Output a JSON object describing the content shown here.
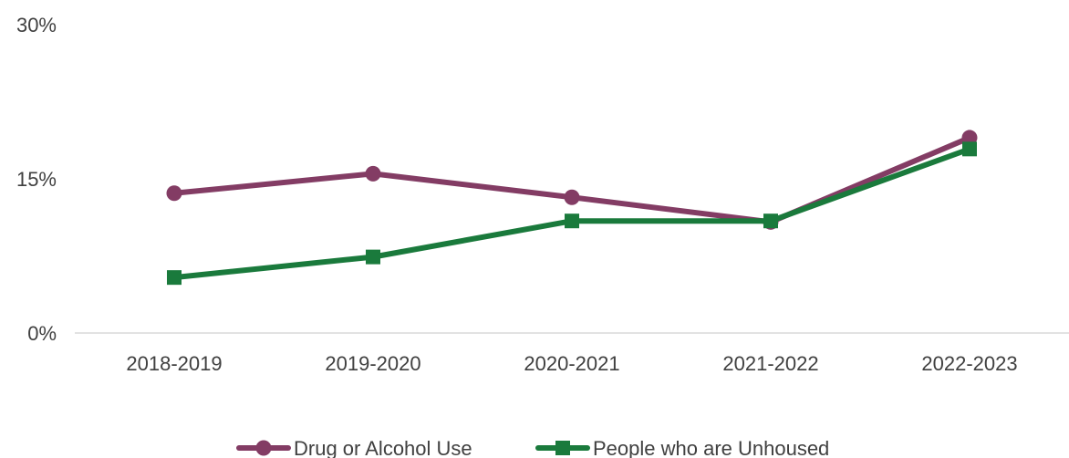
{
  "chart_data": {
    "type": "line",
    "categories": [
      "2018-2019",
      "2019-2020",
      "2020-2021",
      "2021-2022",
      "2022-2023"
    ],
    "y_ticks": [
      {
        "value": 0,
        "label": "0%"
      },
      {
        "value": 15,
        "label": "15%"
      },
      {
        "value": 30,
        "label": "30%"
      }
    ],
    "ylim": [
      0,
      30
    ],
    "grid": false,
    "legend_position": "bottom",
    "series": [
      {
        "name": "Drug or Alcohol Use",
        "values": [
          13.6,
          15.5,
          13.2,
          10.8,
          19.0
        ],
        "color": "#833C64",
        "marker": "circle"
      },
      {
        "name": "People who are Unhoused",
        "values": [
          5.4,
          7.4,
          10.9,
          10.9,
          17.9
        ],
        "color": "#1A7A3C",
        "marker": "square"
      }
    ]
  }
}
